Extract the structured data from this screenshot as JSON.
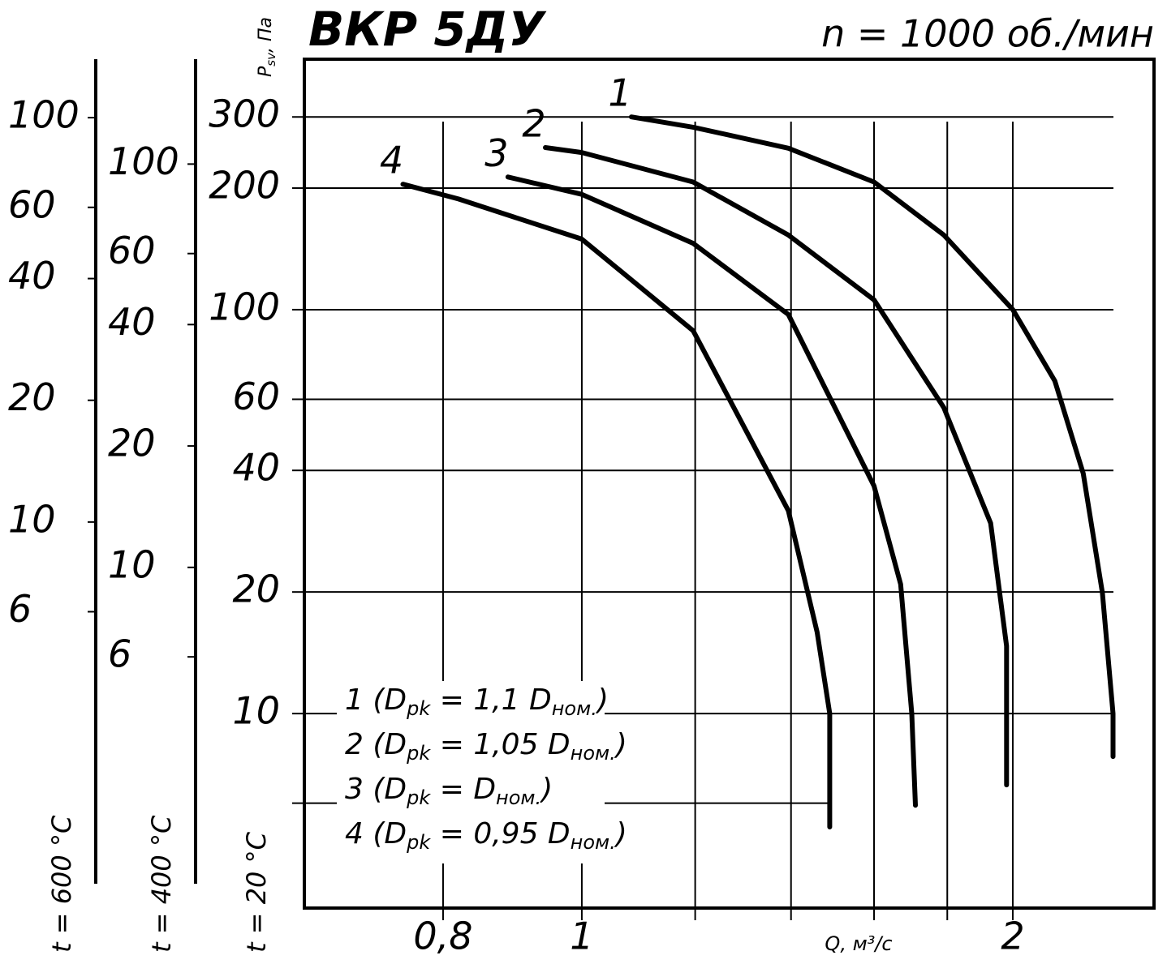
{
  "chart_data": {
    "type": "line",
    "title": "ВКР 5ДУ",
    "subtitle": "n = 1000 об./мин",
    "y_label": {
      "main": "P",
      "sub": "sv",
      "unit": ", Па"
    },
    "x_label": "Q, м³/с",
    "log_x": true,
    "log_y": true,
    "grid": true,
    "xlim": [
      0.64,
      2.51
    ],
    "ylim": [
      3.3,
      417
    ],
    "xticks": [
      {
        "value": 0.8,
        "label": "0,8"
      },
      1,
      2
    ],
    "xminor": [
      1.2,
      1.4,
      1.6,
      1.8
    ],
    "yticks": [
      300,
      200,
      100,
      60,
      40,
      20,
      10
    ],
    "yminor": [
      6
    ],
    "y_scale_label": "t = 20 °C",
    "side_scales": [
      {
        "label": "t = 400 °C",
        "lim": [
          1.43,
          182
        ],
        "ticks": [
          100,
          60,
          40,
          20,
          10,
          6
        ]
      },
      {
        "label": "t = 600 °C",
        "lim": [
          1.11,
          139.5
        ],
        "ticks": [
          100,
          60,
          40,
          20,
          10,
          6
        ]
      }
    ],
    "series": [
      {
        "name": "1",
        "color": "#000000",
        "legend": [
          "(D",
          "pk",
          " = 1,1 D",
          "ном.",
          ")"
        ],
        "x": [
          1.083,
          1.196,
          1.394,
          1.6,
          1.79,
          2.0,
          2.14,
          2.24,
          2.31,
          2.35,
          2.35
        ],
        "values": [
          300,
          283,
          251,
          207,
          153,
          100,
          66.6,
          39.3,
          19.9,
          10,
          7.83
        ]
      },
      {
        "name": "2",
        "color": "#000000",
        "legend": [
          "(D",
          "pk",
          " = 1,05 D",
          "ном.",
          ")"
        ],
        "x": [
          0.943,
          1,
          1.196,
          1.394,
          1.6,
          1.79,
          1.93,
          1.98,
          1.98
        ],
        "values": [
          252,
          245,
          207,
          153,
          105.7,
          57.2,
          29.6,
          14.7,
          6.66
        ]
      },
      {
        "name": "3",
        "color": "#000000",
        "legend": [
          "(D",
          "pk",
          " = D",
          "ном.",
          ")"
        ],
        "x": [
          0.888,
          1,
          1.196,
          1.394,
          1.6,
          1.67,
          1.7,
          1.71
        ],
        "values": [
          213,
          193,
          146,
          97.3,
          36.6,
          20.9,
          10,
          5.93
        ]
      },
      {
        "name": "4",
        "color": "#000000",
        "legend": [
          "(D",
          "pk",
          " = 0,95 D",
          "ном.",
          ")"
        ],
        "x": [
          0.75,
          0.82,
          1,
          1.196,
          1.394,
          1.46,
          1.49,
          1.49
        ],
        "values": [
          204.5,
          188,
          149.5,
          88.7,
          31.8,
          15.9,
          10,
          5.24
        ]
      }
    ]
  }
}
